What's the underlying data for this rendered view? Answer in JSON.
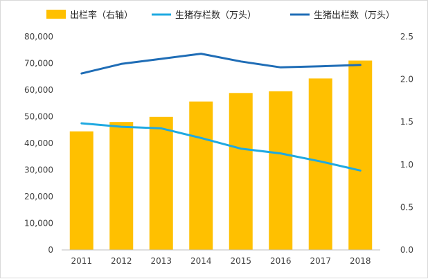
{
  "chart_data": {
    "type": "bar",
    "categories": [
      "2011",
      "2012",
      "2013",
      "2014",
      "2015",
      "2016",
      "2017",
      "2018"
    ],
    "series": [
      {
        "name": "出栏率（右轴）",
        "kind": "bar",
        "axis": "right",
        "color": "#FFC000",
        "values": [
          1.39,
          1.5,
          1.56,
          1.74,
          1.84,
          1.86,
          2.01,
          2.22
        ]
      },
      {
        "name": "生猪存栏数（万头）",
        "kind": "line",
        "axis": "left",
        "color": "#1FA9E1",
        "values": [
          47500,
          46200,
          45600,
          42000,
          38000,
          36200,
          33200,
          29800
        ]
      },
      {
        "name": "生猪出栏数（万头）",
        "kind": "line",
        "axis": "left",
        "color": "#1F6DB6",
        "values": [
          66200,
          69800,
          71700,
          73600,
          70700,
          68500,
          68900,
          69400
        ]
      }
    ],
    "y_left": {
      "min": 0,
      "max": 80000,
      "ticks": [
        "0",
        "10,000",
        "20,000",
        "30,000",
        "40,000",
        "50,000",
        "60,000",
        "70,000",
        "80,000"
      ]
    },
    "y_right": {
      "min": 0,
      "max": 2.5,
      "ticks": [
        "0.0",
        "0.5",
        "1.0",
        "1.5",
        "2.0",
        "2.5"
      ]
    },
    "grid": false,
    "legend": "top"
  }
}
